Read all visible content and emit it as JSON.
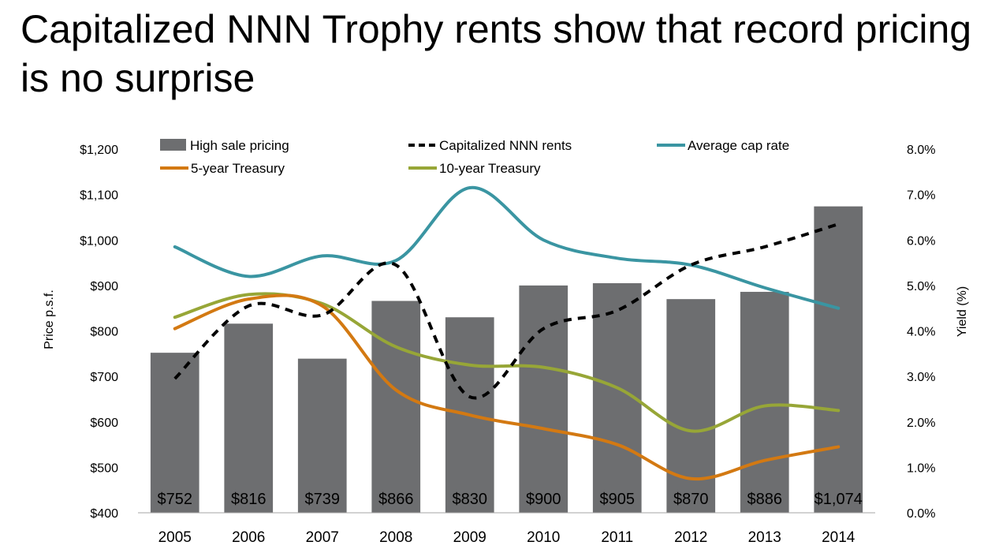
{
  "header": {
    "title": "Capitalized NNN Trophy rents show that record pricing is no surprise"
  },
  "chart_data": {
    "type": "bar+line",
    "categories": [
      "2005",
      "2006",
      "2007",
      "2008",
      "2009",
      "2010",
      "2011",
      "2012",
      "2013",
      "2014"
    ],
    "left_axis": {
      "label": "Price p.s.f.",
      "min": 400,
      "max": 1200,
      "step": 100,
      "tick_labels": [
        "$400",
        "$500",
        "$600",
        "$700",
        "$800",
        "$900",
        "$1,000",
        "$1,100",
        "$1,200"
      ]
    },
    "right_axis": {
      "label": "Yield (%)",
      "min": 0,
      "max": 8,
      "step": 1,
      "tick_labels": [
        "0.0%",
        "1.0%",
        "2.0%",
        "3.0%",
        "4.0%",
        "5.0%",
        "6.0%",
        "7.0%",
        "8.0%"
      ]
    },
    "bars": {
      "name": "High sale pricing",
      "color": "#6d6e70",
      "values": [
        752,
        816,
        739,
        866,
        830,
        900,
        905,
        870,
        886,
        1074
      ],
      "labels": [
        "$752",
        "$816",
        "$739",
        "$866",
        "$830",
        "$900",
        "$905",
        "$870",
        "$886",
        "$1,074"
      ]
    },
    "series": [
      {
        "name": "Capitalized NNN rents",
        "axis": "left",
        "color": "#000000",
        "dashed": true,
        "values": [
          695,
          855,
          835,
          945,
          655,
          805,
          845,
          945,
          985,
          1035
        ]
      },
      {
        "name": "Average cap rate",
        "axis": "right",
        "color": "#3a95a2",
        "dashed": false,
        "values": [
          5.85,
          5.2,
          5.65,
          5.55,
          7.15,
          6.0,
          5.6,
          5.45,
          4.95,
          4.5
        ]
      },
      {
        "name": "5-year Treasury",
        "axis": "right",
        "color": "#d37912",
        "dashed": false,
        "values": [
          4.05,
          4.7,
          4.55,
          2.7,
          2.15,
          1.85,
          1.5,
          0.75,
          1.15,
          1.45
        ]
      },
      {
        "name": "10-year Treasury",
        "axis": "right",
        "color": "#97a637",
        "dashed": false,
        "values": [
          4.3,
          4.8,
          4.6,
          3.65,
          3.25,
          3.2,
          2.75,
          1.8,
          2.35,
          2.25
        ]
      }
    ],
    "legend": {
      "placement": "top",
      "entries": [
        "High sale pricing",
        "Capitalized NNN rents",
        "Average cap rate",
        "5-year Treasury",
        "10-year Treasury"
      ]
    },
    "grid": false
  }
}
